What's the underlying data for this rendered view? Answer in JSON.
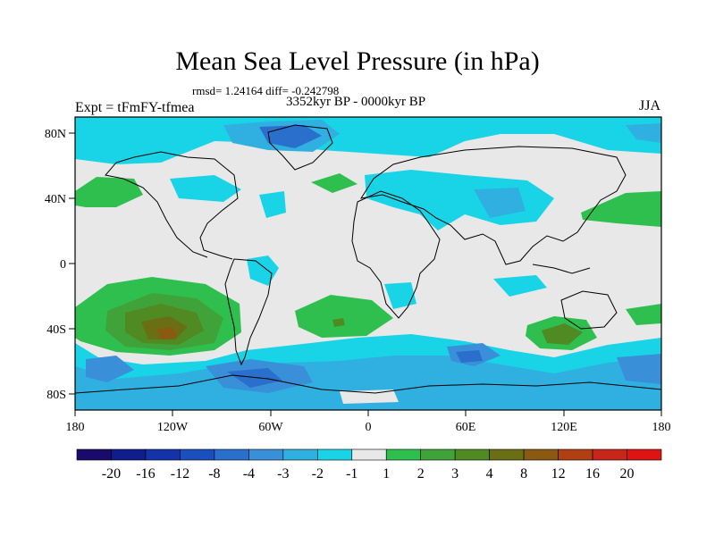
{
  "title": "Mean Sea Level Pressure (in hPa)",
  "stats": "rmsd= 1.24164 diff= -0.242798",
  "period": "3352kyr BP - 0000kyr BP",
  "experiment": "Expt = tFmFY-tfmea",
  "season": "JJA",
  "lat_ticks": [
    "80N",
    "40N",
    "0",
    "40S",
    "80S"
  ],
  "lon_ticks": [
    "180",
    "120W",
    "60W",
    "0",
    "60E",
    "120E",
    "180"
  ],
  "colorbar": {
    "labels": [
      "-20",
      "-16",
      "-12",
      "-8",
      "-4",
      "-3",
      "-2",
      "-1",
      "1",
      "2",
      "3",
      "4",
      "8",
      "12",
      "16",
      "20"
    ],
    "colors": [
      "#1a0a6b",
      "#0f1d8f",
      "#1433a8",
      "#1b4fbd",
      "#2a6fcb",
      "#3a8fd9",
      "#2fb0e0",
      "#19d4e6",
      "#e8e8e8",
      "#2fbf4f",
      "#3fa33a",
      "#4f8a22",
      "#6a6e14",
      "#8a5a12",
      "#b04014",
      "#c8261a",
      "#dc1414"
    ]
  }
}
